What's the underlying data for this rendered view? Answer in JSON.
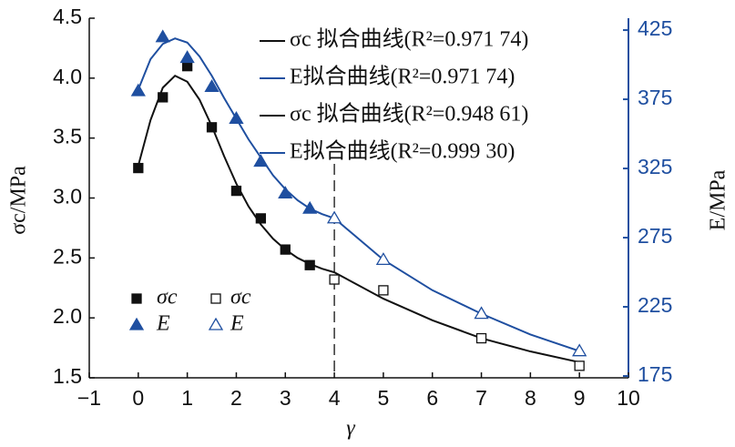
{
  "chart_data": {
    "type": "scatter",
    "xlabel": "γ",
    "ylabel": "σc/MPa",
    "y2label": "E/MPa",
    "xlim": [
      -1,
      10
    ],
    "ylim": [
      1.5,
      4.5
    ],
    "y2lim": [
      173.7,
      433.6
    ],
    "xticks": [
      {
        "value": -1,
        "label": "−1"
      },
      0,
      1,
      2,
      3,
      4,
      5,
      6,
      7,
      8,
      9,
      10
    ],
    "yticks": [
      1.5,
      {
        "value": 2,
        "label": "2.0"
      },
      2.5,
      {
        "value": 3,
        "label": "3.0"
      },
      3.5,
      {
        "value": 4,
        "label": "4.0"
      },
      4.5
    ],
    "y2ticks": [
      175,
      225,
      275,
      325,
      375,
      425
    ],
    "vline_x": 4,
    "series": [
      {
        "name": "σc 拟合曲线(R²=0.971 74)",
        "kind": "line",
        "color": "#111111",
        "x": [
          0,
          0.25,
          0.5,
          0.75,
          1,
          1.25,
          1.5,
          1.75,
          2,
          2.25,
          2.5,
          2.75,
          3,
          3.25,
          3.5,
          3.75,
          4
        ],
        "values": [
          3.27,
          3.65,
          3.92,
          4.02,
          3.97,
          3.82,
          3.6,
          3.35,
          3.12,
          2.93,
          2.78,
          2.66,
          2.57,
          2.5,
          2.45,
          2.41,
          2.38
        ]
      },
      {
        "name": "E拟合曲线(R²=0.971 74)",
        "kind": "line",
        "color": "#1f4fa0",
        "axis": "y2",
        "x": [
          0,
          0.25,
          0.5,
          0.75,
          1,
          1.25,
          1.5,
          1.75,
          2,
          2.25,
          2.5,
          2.75,
          3,
          3.25,
          3.5,
          3.75,
          4
        ],
        "values": [
          382,
          404,
          415,
          419,
          416,
          406,
          392,
          376,
          361,
          346,
          333,
          320,
          310,
          302,
          296,
          292,
          289
        ]
      },
      {
        "name": "σc 拟合曲线(R²=0.948 61)",
        "kind": "line",
        "color": "#111111",
        "x": [
          4,
          5,
          6,
          7,
          8,
          9
        ],
        "values": [
          2.38,
          2.16,
          1.98,
          1.83,
          1.72,
          1.63
        ]
      },
      {
        "name": "E拟合曲线(R²=0.999 30)",
        "kind": "line",
        "color": "#1f4fa0",
        "axis": "y2",
        "x": [
          4,
          5,
          6,
          7,
          8,
          9
        ],
        "values": [
          289,
          259,
          237,
          220,
          205,
          193
        ]
      },
      {
        "name": "σc",
        "kind": "square",
        "filled": true,
        "color": "#111111",
        "x": [
          0,
          0.5,
          1,
          1.5,
          2,
          2.5,
          3,
          3.5
        ],
        "values": [
          3.25,
          3.84,
          4.1,
          3.59,
          3.06,
          2.83,
          2.57,
          2.44
        ]
      },
      {
        "name": "E",
        "kind": "triangle",
        "filled": true,
        "color": "#1f4fa0",
        "axis": "y2",
        "x": [
          0,
          0.5,
          1,
          1.5,
          2,
          2.5,
          3,
          3.5
        ],
        "values": [
          381,
          420,
          405,
          384,
          361,
          330,
          307,
          296
        ]
      },
      {
        "name": "σc",
        "kind": "square",
        "filled": false,
        "color": "#111111",
        "x": [
          4,
          5,
          7,
          9
        ],
        "values": [
          2.32,
          2.23,
          1.83,
          1.6
        ]
      },
      {
        "name": "E",
        "kind": "triangle",
        "filled": false,
        "color": "#1f4fa0",
        "axis": "y2",
        "x": [
          4,
          5,
          7,
          9
        ],
        "values": [
          289,
          259,
          220,
          193
        ]
      }
    ]
  }
}
